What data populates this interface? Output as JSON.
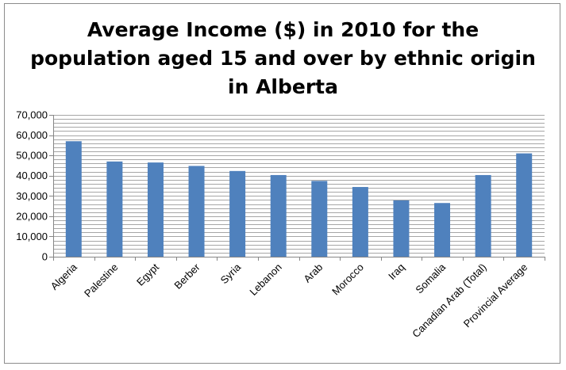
{
  "chart_data": {
    "type": "bar",
    "title_lines": [
      "Average Income ($) in 2010 for the",
      "population aged 15 and over by ethnic origin",
      "in Alberta"
    ],
    "xlabel": "",
    "ylabel": "",
    "ylim": [
      0,
      70000
    ],
    "yticks": [
      0,
      10000,
      20000,
      30000,
      40000,
      50000,
      60000,
      70000
    ],
    "ytick_labels": [
      "0",
      "10,000",
      "20,000",
      "30,000",
      "40,000",
      "50,000",
      "60,000",
      "70,000"
    ],
    "categories": [
      "Algeria",
      "Palestine",
      "Egypt",
      "Berber",
      "Syria",
      "Lebanon",
      "Arab",
      "Morocco",
      "Iraq",
      "Somalia",
      "Canadian Arab (Total)",
      "Provincial Average"
    ],
    "values": [
      57000,
      47000,
      46500,
      44800,
      42300,
      40300,
      37400,
      34400,
      27800,
      26500,
      40300,
      51000
    ],
    "grid": true,
    "legend": "none",
    "colors": {
      "bar": "#4f81bd",
      "grid": "#a6a6a6",
      "axis": "#868686"
    }
  }
}
